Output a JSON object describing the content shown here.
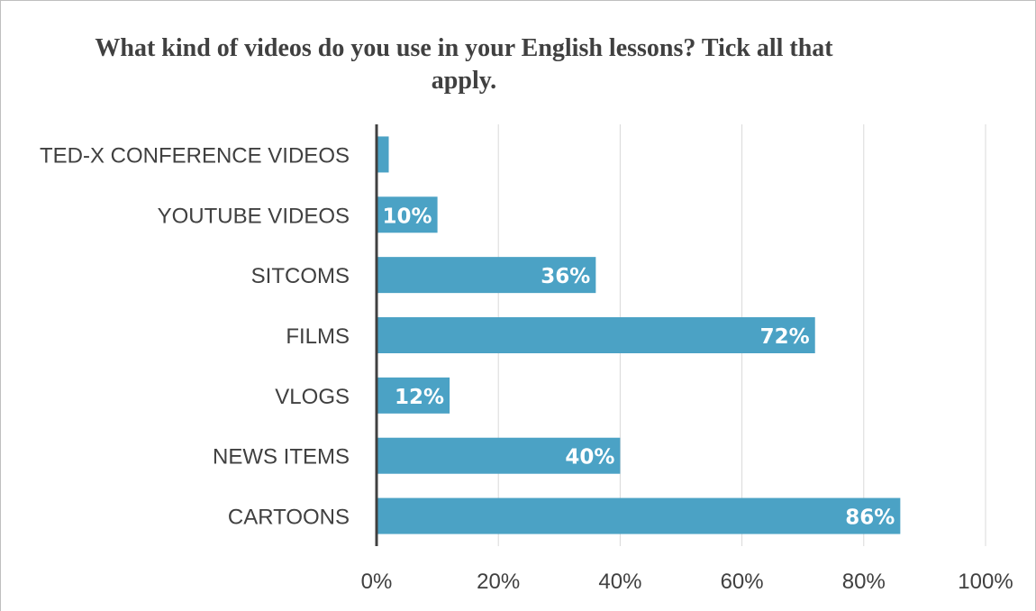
{
  "chart_data": {
    "type": "bar",
    "orientation": "horizontal",
    "title": "What kind of videos do you use in your English lessons? Tick all that apply.",
    "categories": [
      "TED-X CONFERENCE VIDEOS",
      "YOUTUBE VIDEOS",
      "SITCOMS",
      "FILMS",
      "VLOGS",
      "NEWS ITEMS",
      "CARTOONS"
    ],
    "values": [
      2,
      10,
      36,
      72,
      12,
      40,
      86
    ],
    "data_labels": [
      "",
      "10%",
      "36%",
      "72%",
      "12%",
      "40%",
      "86%"
    ],
    "x_ticks": [
      "0%",
      "20%",
      "40%",
      "60%",
      "80%",
      "100%"
    ],
    "xlim": [
      0,
      100
    ],
    "xlabel": "",
    "ylabel": "",
    "grid": true,
    "bar_color": "#4ba2c5"
  }
}
